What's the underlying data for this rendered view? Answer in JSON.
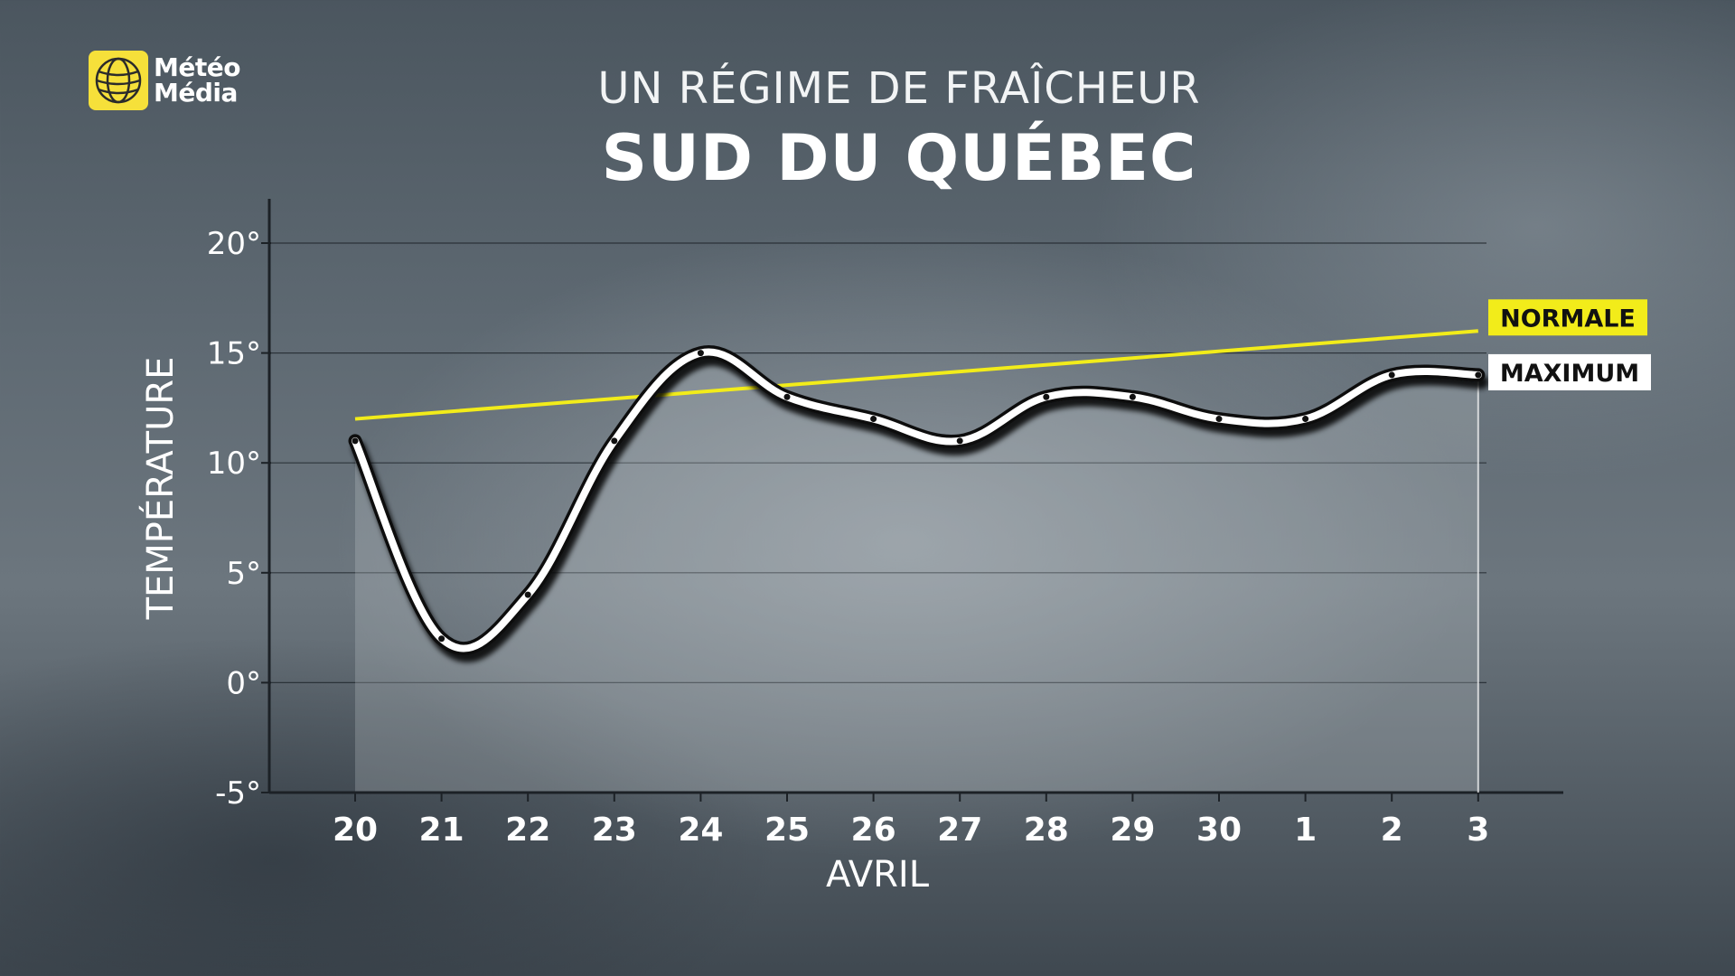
{
  "brand": {
    "line1": "Météo",
    "line2": "Média",
    "accent": "#f6e03a"
  },
  "header": {
    "title": "UN RÉGIME DE FRAÎCHEUR",
    "subtitle": "SUD DU QUÉBEC"
  },
  "chart_data": {
    "type": "line",
    "ylabel": "TEMPÉRATURE",
    "xlabel": "AVRIL",
    "ylim": [
      -5,
      20
    ],
    "y_ticks": [
      "20°",
      "15°",
      "10°",
      "5°",
      "0°",
      "-5°"
    ],
    "y_tick_values": [
      20,
      15,
      10,
      5,
      0,
      -5
    ],
    "categories": [
      "20",
      "21",
      "22",
      "23",
      "24",
      "25",
      "26",
      "27",
      "28",
      "29",
      "30",
      "1",
      "2",
      "3"
    ],
    "grid": true,
    "series": [
      {
        "name": "MAXIMUM",
        "values": [
          11,
          2,
          4,
          11,
          15,
          13,
          12,
          11,
          13,
          13,
          12,
          12,
          14,
          14
        ],
        "color": "#ffffff"
      },
      {
        "name": "NORMALE",
        "start": 12,
        "end": 16,
        "color": "#f2ec1a"
      }
    ]
  }
}
